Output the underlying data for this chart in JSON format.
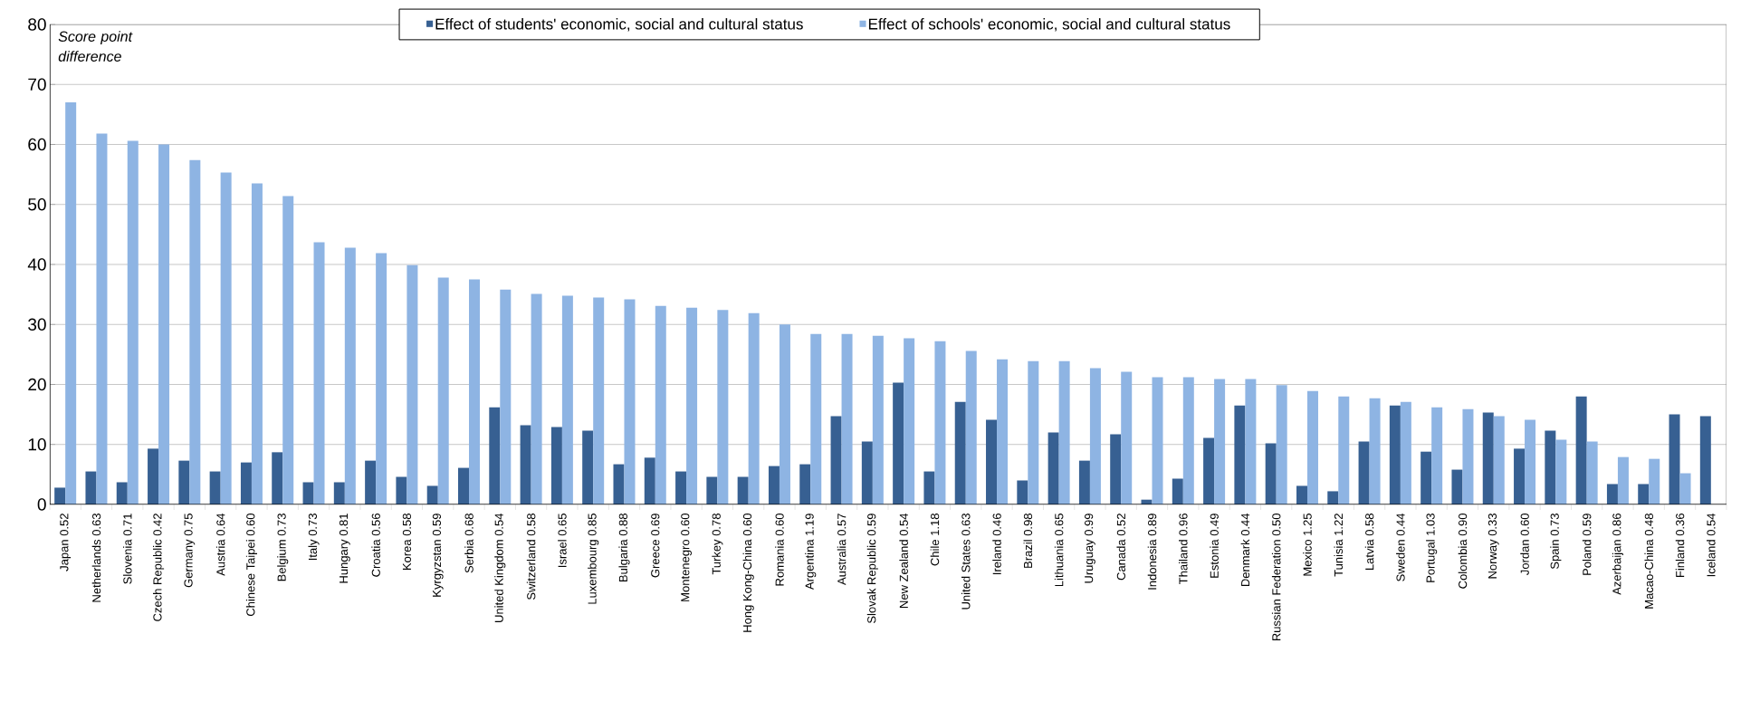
{
  "chart_data": {
    "type": "bar",
    "ylabel": "Score point difference",
    "categories": [
      "Japan 0.52",
      "Netherlands 0.63",
      "Slovenia 0.71",
      "Czech Republic 0.42",
      "Germany 0.75",
      "Austria 0.64",
      "Chinese Taipei 0.60",
      "Belgium 0.73",
      "Italy 0.73",
      "Hungary 0.81",
      "Croatia 0.56",
      "Korea 0.58",
      "Kyrgyzstan 0.59",
      "Serbia 0.68",
      "United Kingdom 0.54",
      "Switzerland 0.58",
      "Israel 0.65",
      "Luxembourg 0.85",
      "Bulgaria 0.88",
      "Greece 0.69",
      "Montenegro 0.60",
      "Turkey 0.78",
      "Hong Kong-China 0.60",
      "Romania 0.60",
      "Argentina 1.19",
      "Australia 0.57",
      "Slovak Republic 0.59",
      "New Zealand 0.54",
      "Chile 1.18",
      "United States 0.63",
      "Ireland 0.46",
      "Brazil 0.98",
      "Lithuania 0.65",
      "Uruguay 0.99",
      "Canada 0.52",
      "Indonesia 0.89",
      "Thailand 0.96",
      "Estonia 0.49",
      "Denmark 0.44",
      "Russian Federation 0.50",
      "Mexico 1.25",
      "Tunisia 1.22",
      "Latvia 0.58",
      "Sweden 0.44",
      "Portugal 1.03",
      "Colombia 0.90",
      "Norway 0.33",
      "Jordan 0.60",
      "Spain 0.73",
      "Poland 0.59",
      "Azerbaijan 0.86",
      "Macao-China 0.48",
      "Finland 0.36",
      "Iceland 0.54"
    ],
    "series": [
      {
        "name": "Effect of students' economic, social and cultural status",
        "color": "#376092",
        "values": [
          2.8,
          5.5,
          3.7,
          9.3,
          7.3,
          5.5,
          7.0,
          8.7,
          3.7,
          3.7,
          7.3,
          4.6,
          3.1,
          6.1,
          16.2,
          13.2,
          12.9,
          12.3,
          6.7,
          7.8,
          5.5,
          4.6,
          4.6,
          6.4,
          6.7,
          14.7,
          10.5,
          20.3,
          5.5,
          17.1,
          14.1,
          4.0,
          12.0,
          7.3,
          11.7,
          0.8,
          4.3,
          11.1,
          16.5,
          10.2,
          3.1,
          2.2,
          10.5,
          16.5,
          8.8,
          5.8,
          15.3,
          9.3,
          12.3,
          18.0,
          3.4,
          3.4,
          15.0,
          14.7
        ]
      },
      {
        "name": "Effect of schools' economic, social and cultural status",
        "color": "#8eb4e3",
        "values": [
          67.0,
          61.8,
          60.6,
          60.0,
          57.4,
          55.3,
          53.5,
          51.4,
          43.7,
          42.8,
          41.9,
          39.9,
          37.8,
          37.5,
          35.8,
          35.1,
          34.8,
          34.5,
          34.2,
          33.1,
          32.8,
          32.4,
          31.9,
          30.0,
          28.4,
          28.4,
          28.1,
          27.7,
          27.2,
          25.6,
          24.2,
          23.9,
          23.9,
          22.7,
          22.1,
          21.2,
          21.2,
          20.9,
          20.9,
          19.9,
          18.9,
          18.0,
          17.7,
          17.1,
          16.2,
          15.9,
          14.7,
          14.1,
          10.8,
          10.5,
          7.9,
          7.6,
          5.2,
          null
        ]
      }
    ],
    "ylim": [
      0,
      80
    ],
    "yticks": [
      0,
      10,
      20,
      30,
      40,
      50,
      60,
      70,
      80
    ],
    "grid": "y",
    "legend": "top"
  }
}
